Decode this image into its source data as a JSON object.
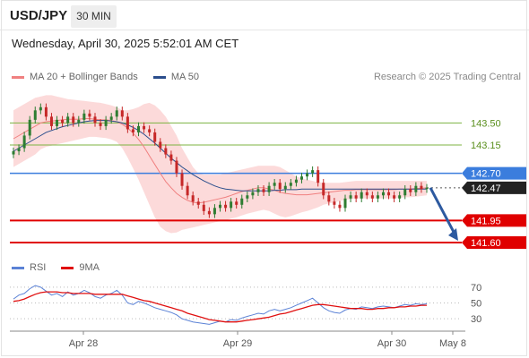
{
  "header": {
    "symbol": "USD/JPY",
    "interval": "30 MIN",
    "timestamp": "Wednesday, April 30, 2025 5:52:01 AM CET"
  },
  "legend_main": [
    {
      "label": "MA 20 + Bollinger Bands",
      "color": "#f08080"
    },
    {
      "label": "MA 50",
      "color": "#2b4e8c"
    }
  ],
  "legend_rsi": [
    {
      "label": "RSI",
      "color": "#5b82d6"
    },
    {
      "label": "9MA",
      "color": "#e01010"
    }
  ],
  "research": "Research © 2025 Trading Central",
  "colors": {
    "candle_up": "#2e7d32",
    "candle_down": "#c62828",
    "band_fill": "#fbd3d3",
    "ma20": "#f08080",
    "ma50": "#2b4e8c",
    "resistance": "#7cb342",
    "pivot": "#3b7ddd",
    "support": "#e00000",
    "rsi": "#5b82d6",
    "rsi_ma": "#e01010",
    "arrow": "#2d5aa0"
  },
  "chart_data": [
    {
      "type": "candlestick",
      "ylim": [
        141.5,
        143.95
      ],
      "x_ticks": [
        "Apr 28",
        "Apr 29",
        "Apr 30",
        "May 8"
      ],
      "levels": [
        {
          "value": 143.5,
          "label": "143.50",
          "kind": "resistance"
        },
        {
          "value": 143.15,
          "label": "143.15",
          "kind": "resistance"
        },
        {
          "value": 142.7,
          "label": "142.70",
          "kind": "pivot"
        },
        {
          "value": 142.47,
          "label": "142.47",
          "kind": "last"
        },
        {
          "value": 141.95,
          "label": "141.95",
          "kind": "support"
        },
        {
          "value": 141.6,
          "label": "141.60",
          "kind": "support"
        }
      ],
      "close": [
        143.05,
        143.1,
        143.3,
        143.55,
        143.7,
        143.75,
        143.6,
        143.45,
        143.55,
        143.5,
        143.6,
        143.5,
        143.55,
        143.65,
        143.6,
        143.5,
        143.45,
        143.55,
        143.6,
        143.7,
        143.6,
        143.4,
        143.35,
        143.45,
        143.4,
        143.35,
        143.2,
        143.1,
        143.0,
        142.9,
        142.7,
        142.5,
        142.35,
        142.25,
        142.2,
        142.1,
        142.05,
        142.15,
        142.2,
        142.15,
        142.25,
        142.2,
        142.3,
        142.35,
        142.4,
        142.45,
        142.4,
        142.5,
        142.55,
        142.45,
        142.5,
        142.55,
        142.6,
        142.65,
        142.7,
        142.75,
        142.55,
        142.35,
        142.25,
        142.2,
        142.15,
        142.3,
        142.35,
        142.3,
        142.4,
        142.35,
        142.3,
        142.35,
        142.4,
        142.35,
        142.3,
        142.35,
        142.45,
        142.4,
        142.5,
        142.45,
        142.47
      ],
      "ma20": [
        143.25,
        143.3,
        143.35,
        143.4,
        143.45,
        143.5,
        143.52,
        143.53,
        143.54,
        143.55,
        143.56,
        143.56,
        143.56,
        143.57,
        143.57,
        143.56,
        143.55,
        143.55,
        143.54,
        143.52,
        143.48,
        143.42,
        143.34,
        143.24,
        143.12,
        142.98,
        142.84,
        142.7,
        142.57,
        142.47,
        142.38,
        142.32,
        142.27,
        142.24,
        142.23,
        142.24,
        142.26,
        142.28,
        142.3,
        142.32,
        142.35,
        142.38,
        142.41,
        142.43,
        142.45,
        142.47,
        142.47,
        142.45,
        142.43,
        142.4,
        142.38,
        142.37,
        142.36,
        142.36,
        142.36,
        142.37,
        142.38,
        142.39,
        142.4,
        142.41,
        142.42,
        142.43,
        142.43,
        142.44,
        142.44,
        142.44,
        142.44,
        142.44,
        142.44,
        142.44,
        142.44,
        142.45,
        142.45,
        142.45,
        142.46,
        142.46,
        142.47
      ],
      "bb_upper": [
        143.7,
        143.75,
        143.8,
        143.85,
        143.9,
        143.92,
        143.94,
        143.94,
        143.92,
        143.9,
        143.88,
        143.87,
        143.86,
        143.85,
        143.84,
        143.83,
        143.82,
        143.8,
        143.78,
        143.75,
        143.7,
        143.7,
        143.72,
        143.75,
        143.8,
        143.82,
        143.78,
        143.7,
        143.6,
        143.45,
        143.3,
        143.1,
        142.95,
        142.8,
        142.7,
        142.68,
        142.68,
        142.68,
        142.68,
        142.7,
        142.72,
        142.74,
        142.76,
        142.78,
        142.8,
        142.82,
        142.82,
        142.82,
        142.82,
        142.8,
        142.75,
        142.7,
        142.65,
        142.62,
        142.6,
        142.58,
        142.56,
        142.55,
        142.55,
        142.55,
        142.55,
        142.56,
        142.57,
        142.58,
        142.58,
        142.58,
        142.58,
        142.58,
        142.58,
        142.58,
        142.58,
        142.58,
        142.58,
        142.58,
        142.58,
        142.58,
        142.58
      ],
      "bb_lower": [
        142.8,
        142.85,
        142.9,
        142.95,
        143.0,
        143.08,
        143.12,
        143.14,
        143.16,
        143.18,
        143.2,
        143.22,
        143.24,
        143.26,
        143.28,
        143.28,
        143.27,
        143.26,
        143.24,
        143.2,
        143.1,
        142.95,
        142.78,
        142.6,
        142.4,
        142.2,
        142.0,
        141.85,
        141.78,
        141.75,
        141.76,
        141.8,
        141.82,
        141.84,
        141.86,
        141.88,
        141.9,
        141.92,
        141.94,
        141.95,
        141.98,
        142.0,
        142.03,
        142.06,
        142.08,
        142.1,
        142.12,
        142.1,
        142.06,
        142.02,
        142.0,
        142.02,
        142.05,
        142.08,
        142.1,
        142.13,
        142.16,
        142.2,
        142.22,
        142.24,
        142.26,
        142.28,
        142.29,
        142.3,
        142.3,
        142.3,
        142.3,
        142.3,
        142.3,
        142.3,
        142.3,
        142.31,
        142.32,
        142.32,
        142.33,
        142.34,
        142.35
      ],
      "ma50": [
        143.05,
        143.1,
        143.15,
        143.2,
        143.25,
        143.3,
        143.35,
        143.38,
        143.41,
        143.44,
        143.46,
        143.48,
        143.5,
        143.52,
        143.53,
        143.54,
        143.54,
        143.54,
        143.53,
        143.52,
        143.5,
        143.47,
        143.43,
        143.38,
        143.32,
        143.25,
        143.18,
        143.1,
        143.02,
        142.94,
        142.87,
        142.8,
        142.74,
        142.68,
        142.63,
        142.58,
        142.54,
        142.5,
        142.47,
        142.45,
        142.44,
        142.43,
        142.42,
        142.42,
        142.42,
        142.42,
        142.42,
        142.42,
        142.43,
        142.43,
        142.44,
        142.44,
        142.44,
        142.45,
        142.45,
        142.45,
        142.45,
        142.45,
        142.45,
        142.45,
        142.45,
        142.45,
        142.45,
        142.45,
        142.45,
        142.45,
        142.45,
        142.45,
        142.45,
        142.45,
        142.45,
        142.45,
        142.45,
        142.45,
        142.45,
        142.45,
        142.45
      ]
    },
    {
      "type": "line",
      "ylim": [
        20,
        80
      ],
      "y_ticks": [
        70,
        50,
        30
      ],
      "series": [
        {
          "name": "RSI",
          "values": [
            55,
            60,
            62,
            68,
            72,
            70,
            65,
            60,
            62,
            58,
            64,
            60,
            62,
            66,
            63,
            58,
            56,
            60,
            62,
            66,
            60,
            50,
            48,
            52,
            50,
            47,
            44,
            42,
            40,
            38,
            35,
            30,
            28,
            26,
            25,
            24,
            23,
            25,
            27,
            26,
            29,
            28,
            31,
            33,
            35,
            37,
            36,
            40,
            42,
            40,
            42,
            44,
            47,
            50,
            53,
            56,
            50,
            44,
            40,
            38,
            37,
            41,
            43,
            42,
            45,
            44,
            43,
            45,
            46,
            45,
            44,
            46,
            48,
            47,
            49,
            48,
            49
          ]
        },
        {
          "name": "9MA",
          "values": [
            52,
            53,
            55,
            58,
            61,
            63,
            64,
            64,
            64,
            63,
            63,
            62,
            62,
            62,
            62,
            61,
            61,
            61,
            61,
            61,
            61,
            59,
            57,
            55,
            53,
            52,
            50,
            48,
            46,
            44,
            42,
            40,
            37,
            35,
            33,
            31,
            29,
            28,
            27,
            26,
            26,
            26,
            27,
            28,
            29,
            30,
            31,
            32,
            34,
            36,
            37,
            39,
            41,
            43,
            45,
            47,
            48,
            48,
            47,
            46,
            45,
            44,
            43,
            43,
            43,
            42,
            42,
            43,
            43,
            44,
            44,
            45,
            45,
            46,
            46,
            47,
            47
          ]
        }
      ]
    }
  ]
}
